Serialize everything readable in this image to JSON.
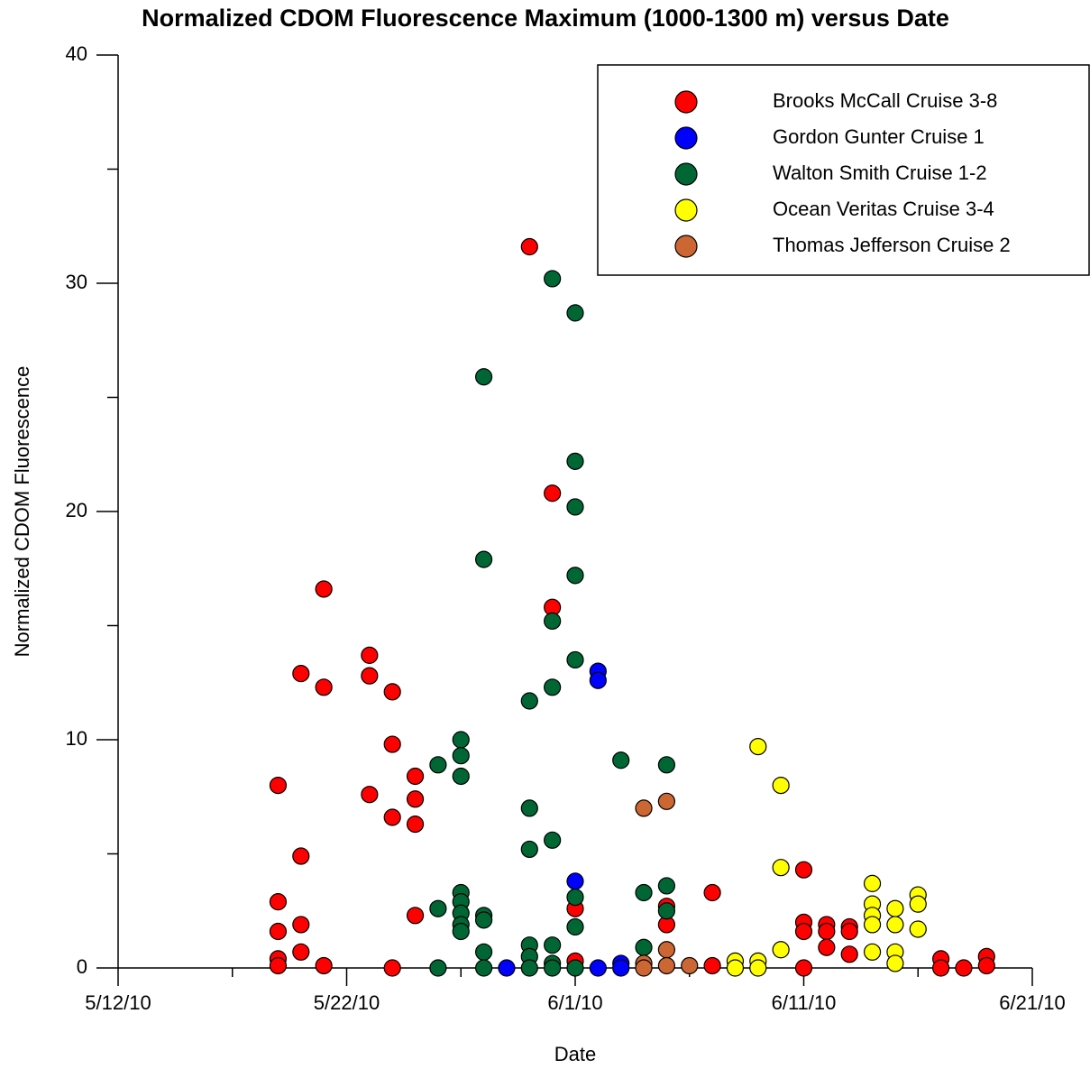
{
  "chart_data": {
    "type": "scatter",
    "title": "Normalized CDOM Fluorescence Maximum (1000-1300 m) versus Date",
    "x_label": "Date",
    "y_label": "Normalized CDOM Fluorescence",
    "xlim": [
      "5/12/10",
      "6/21/10"
    ],
    "xticks": [
      "5/12/10",
      "5/22/10",
      "6/1/10",
      "6/11/10",
      "6/21/10"
    ],
    "xminorticks": [
      "5/17/10",
      "5/27/10",
      "6/6/10",
      "6/16/10"
    ],
    "ylim": [
      0,
      40
    ],
    "yticks": [
      0,
      10,
      20,
      30,
      40
    ],
    "yminorticks": [
      5,
      15,
      25,
      35
    ],
    "legend": "top-right",
    "series": [
      {
        "name": "Brooks McCall Cruise 3-8",
        "color": "#ff0000",
        "x": [
          "5/19/10",
          "5/19/10",
          "5/19/10",
          "5/19/10",
          "5/19/10",
          "5/20/10",
          "5/20/10",
          "5/20/10",
          "5/20/10",
          "5/21/10",
          "5/21/10",
          "5/21/10",
          "5/23/10",
          "5/23/10",
          "5/23/10",
          "5/24/10",
          "5/24/10",
          "5/24/10",
          "5/24/10",
          "5/25/10",
          "5/25/10",
          "5/25/10",
          "5/25/10",
          "5/30/10",
          "5/31/10",
          "5/31/10",
          "6/1/10",
          "6/1/10",
          "6/5/10",
          "6/5/10",
          "6/7/10",
          "6/7/10",
          "6/11/10",
          "6/11/10",
          "6/11/10",
          "6/11/10",
          "6/12/10",
          "6/12/10",
          "6/12/10",
          "6/13/10",
          "6/13/10",
          "6/13/10",
          "6/17/10",
          "6/17/10",
          "6/18/10",
          "6/19/10",
          "6/19/10"
        ],
        "values": [
          8.0,
          2.9,
          1.6,
          0.4,
          0.1,
          12.9,
          4.9,
          1.9,
          0.7,
          16.6,
          12.3,
          0.1,
          13.7,
          12.8,
          7.6,
          12.1,
          9.8,
          6.6,
          0.0,
          8.4,
          7.4,
          6.3,
          2.3,
          31.6,
          20.8,
          15.8,
          2.6,
          0.3,
          2.7,
          1.9,
          3.3,
          0.1,
          4.3,
          2.0,
          1.6,
          0.0,
          1.9,
          1.6,
          0.9,
          1.8,
          1.6,
          0.6,
          0.4,
          0.0,
          0.0,
          0.5,
          0.1
        ]
      },
      {
        "name": "Gordon Gunter Cruise 1",
        "color": "#0000ff",
        "x": [
          "5/29/10",
          "6/1/10",
          "6/2/10",
          "6/2/10",
          "6/2/10",
          "6/3/10",
          "6/3/10"
        ],
        "values": [
          0.0,
          3.8,
          13.0,
          12.6,
          0.0,
          0.2,
          0.0
        ]
      },
      {
        "name": "Walton Smith Cruise 1-2",
        "color": "#006633",
        "x": [
          "5/26/10",
          "5/26/10",
          "5/26/10",
          "5/27/10",
          "5/27/10",
          "5/27/10",
          "5/27/10",
          "5/27/10",
          "5/27/10",
          "5/27/10",
          "5/27/10",
          "5/28/10",
          "5/28/10",
          "5/28/10",
          "5/28/10",
          "5/28/10",
          "5/28/10",
          "5/30/10",
          "5/30/10",
          "5/30/10",
          "5/30/10",
          "5/30/10",
          "5/30/10",
          "5/31/10",
          "5/31/10",
          "5/31/10",
          "5/31/10",
          "5/31/10",
          "5/31/10",
          "5/31/10",
          "6/1/10",
          "6/1/10",
          "6/1/10",
          "6/1/10",
          "6/1/10",
          "6/1/10",
          "6/1/10",
          "6/1/10",
          "6/3/10",
          "6/4/10",
          "6/4/10",
          "6/5/10",
          "6/5/10",
          "6/5/10"
        ],
        "values": [
          8.9,
          2.6,
          0.0,
          10.0,
          9.3,
          8.4,
          3.3,
          2.9,
          2.4,
          1.9,
          1.6,
          25.9,
          17.9,
          2.3,
          2.1,
          0.7,
          0.0,
          11.7,
          7.0,
          5.2,
          1.0,
          0.5,
          0.0,
          30.2,
          15.2,
          12.3,
          5.6,
          1.0,
          0.2,
          0.0,
          28.7,
          22.2,
          20.2,
          17.2,
          13.5,
          3.1,
          1.8,
          0.0,
          9.1,
          3.3,
          0.9,
          8.9,
          3.6,
          2.5
        ]
      },
      {
        "name": "Ocean Veritas Cruise 3-4",
        "color": "#ffff00",
        "x": [
          "6/8/10",
          "6/8/10",
          "6/9/10",
          "6/9/10",
          "6/9/10",
          "6/10/10",
          "6/10/10",
          "6/10/10",
          "6/14/10",
          "6/14/10",
          "6/14/10",
          "6/14/10",
          "6/14/10",
          "6/15/10",
          "6/15/10",
          "6/15/10",
          "6/15/10",
          "6/16/10",
          "6/16/10",
          "6/16/10"
        ],
        "values": [
          0.3,
          0.0,
          9.7,
          0.3,
          0.0,
          8.0,
          4.4,
          0.8,
          3.7,
          2.8,
          2.3,
          1.9,
          0.7,
          2.6,
          1.9,
          0.7,
          0.2,
          3.2,
          2.8,
          1.7
        ]
      },
      {
        "name": "Thomas Jefferson Cruise 2",
        "color": "#cc6633",
        "x": [
          "6/4/10",
          "6/4/10",
          "6/4/10",
          "6/5/10",
          "6/5/10",
          "6/5/10",
          "6/6/10"
        ],
        "values": [
          7.0,
          0.2,
          0.0,
          7.3,
          0.8,
          0.1,
          0.1
        ]
      }
    ]
  }
}
